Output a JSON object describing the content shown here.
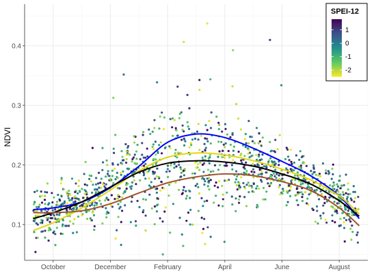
{
  "chart_data": {
    "type": "scatter",
    "ylabel": "NDVI",
    "xlabel": "",
    "x_ticks": [
      "October",
      "December",
      "February",
      "April",
      "June",
      "August"
    ],
    "y_ticks": [
      "0.1",
      "0.2",
      "0.3",
      "0.4"
    ],
    "xlim": [
      0,
      12
    ],
    "ylim": [
      0.04,
      0.47
    ],
    "grid": true,
    "legend": {
      "title": "SPEI-12",
      "placement": "top-right",
      "labels": [
        "1",
        "0",
        "-1",
        "-2"
      ],
      "values": [
        1,
        0,
        -1,
        -2
      ],
      "range": [
        -2.5,
        1.8
      ],
      "colors": [
        "#440154",
        "#3b528b",
        "#21908d",
        "#5dc863",
        "#fde725"
      ]
    },
    "point_summary": {
      "x_range": [
        0.3,
        11.7
      ],
      "count_shown": 1300,
      "notes": "Dense cloud of points following the seasonal NDVI curve; peak scatter up to about 0.45 in February"
    },
    "series": [
      {
        "color": "#0000ff",
        "x": [
          0.3,
          1,
          2,
          3,
          4,
          5,
          6,
          7,
          8,
          9,
          10,
          11,
          11.7
        ],
        "y": [
          0.125,
          0.128,
          0.138,
          0.162,
          0.198,
          0.238,
          0.252,
          0.246,
          0.228,
          0.206,
          0.182,
          0.148,
          0.11
        ]
      },
      {
        "color": "#e3d60f",
        "x": [
          0.3,
          1,
          2,
          3,
          4,
          5,
          6,
          7,
          8,
          9,
          10,
          11,
          11.7
        ],
        "y": [
          0.09,
          0.103,
          0.128,
          0.158,
          0.19,
          0.213,
          0.22,
          0.217,
          0.207,
          0.193,
          0.175,
          0.148,
          0.118
        ]
      },
      {
        "color": "#000000",
        "x": [
          0.3,
          1,
          2,
          3,
          4,
          5,
          6,
          7,
          8,
          9,
          10,
          11,
          11.7
        ],
        "y": [
          0.11,
          0.12,
          0.138,
          0.163,
          0.188,
          0.203,
          0.207,
          0.205,
          0.198,
          0.185,
          0.168,
          0.14,
          0.114
        ]
      },
      {
        "color": "#a0522d",
        "x": [
          0.3,
          1,
          2,
          3,
          4,
          5,
          6,
          7,
          8,
          9,
          10,
          11,
          11.7
        ],
        "y": [
          0.12,
          0.12,
          0.123,
          0.135,
          0.153,
          0.17,
          0.18,
          0.185,
          0.182,
          0.172,
          0.157,
          0.128,
          0.098
        ]
      }
    ]
  }
}
